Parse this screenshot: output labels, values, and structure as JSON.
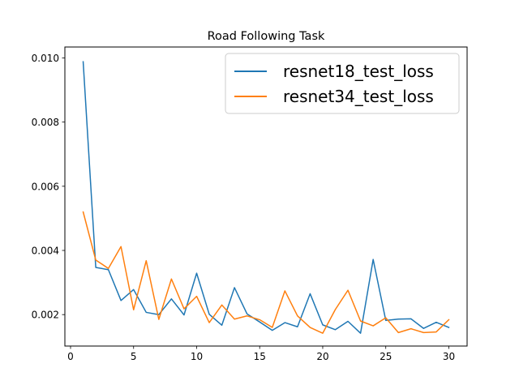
{
  "chart_data": {
    "type": "line",
    "title": "Road Following Task",
    "xlabel": "",
    "ylabel": "",
    "xlim": [
      -0.45,
      31.45
    ],
    "ylim": [
      0.00102,
      0.01034
    ],
    "xticks": [
      0,
      5,
      10,
      15,
      20,
      25,
      30
    ],
    "yticks": [
      0.002,
      0.004,
      0.006,
      0.008,
      0.01
    ],
    "ytick_labels": [
      "0.002",
      "0.004",
      "0.006",
      "0.008",
      "0.010"
    ],
    "grid": false,
    "legend_position": "top-right",
    "x": [
      1,
      2,
      3,
      4,
      5,
      6,
      7,
      8,
      9,
      10,
      11,
      12,
      13,
      14,
      15,
      16,
      17,
      18,
      19,
      20,
      21,
      22,
      23,
      24,
      25,
      26,
      27,
      28,
      29,
      30
    ],
    "series": [
      {
        "name": "resnet18_test_loss",
        "color": "#1f77b4",
        "values": [
          0.00988,
          0.00347,
          0.0034,
          0.00244,
          0.00278,
          0.00207,
          0.002,
          0.00249,
          0.00199,
          0.00329,
          0.00201,
          0.00167,
          0.00284,
          0.00202,
          0.00177,
          0.00151,
          0.00175,
          0.00162,
          0.00265,
          0.00168,
          0.00153,
          0.00179,
          0.00142,
          0.00372,
          0.00182,
          0.00186,
          0.00187,
          0.00157,
          0.00176,
          0.0016
        ]
      },
      {
        "name": "resnet34_test_loss",
        "color": "#ff7f0e",
        "values": [
          0.0052,
          0.0037,
          0.00344,
          0.00412,
          0.00215,
          0.00368,
          0.00185,
          0.00311,
          0.00218,
          0.00257,
          0.00175,
          0.0023,
          0.00186,
          0.00196,
          0.00184,
          0.0016,
          0.00274,
          0.00196,
          0.0016,
          0.00142,
          0.00216,
          0.00276,
          0.0018,
          0.00165,
          0.0019,
          0.00144,
          0.00156,
          0.00144,
          0.00146,
          0.00184
        ]
      }
    ]
  }
}
